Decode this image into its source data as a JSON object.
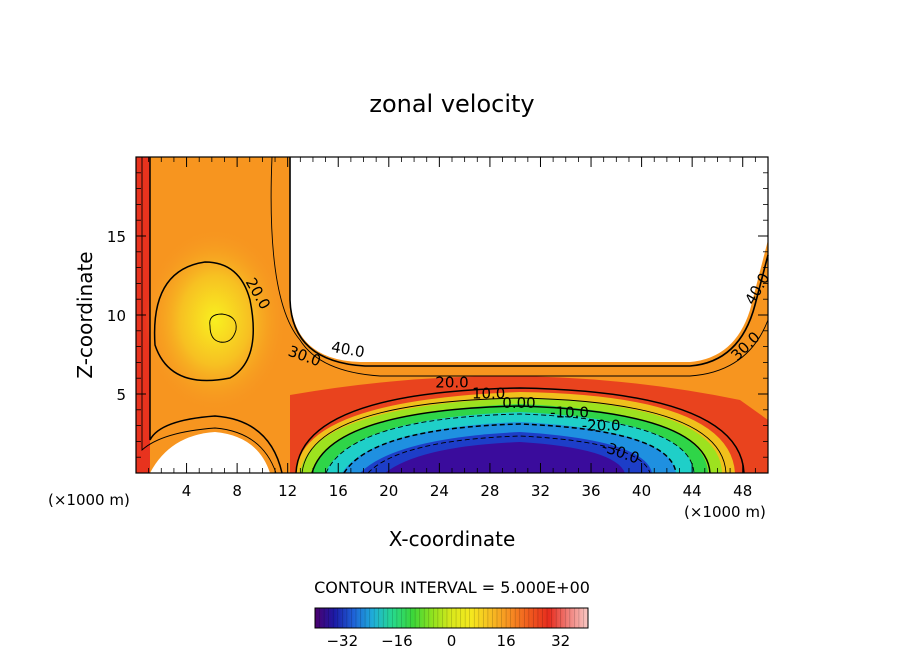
{
  "chart_data": {
    "type": "contour",
    "title": "zonal velocity",
    "xlabel": "X-coordinate",
    "ylabel": "Z-coordinate",
    "xunit": "(×1000 m)",
    "xlim": [
      0,
      50
    ],
    "ylim": [
      0,
      20
    ],
    "xticks": [
      4,
      8,
      12,
      16,
      20,
      24,
      28,
      32,
      36,
      40,
      44,
      48
    ],
    "xtick_labels": [
      "4",
      "8",
      "12",
      "16",
      "20",
      "24",
      "28",
      "32",
      "36",
      "40",
      "44",
      "48"
    ],
    "yticks": [
      5,
      10,
      15
    ],
    "ytick_labels": [
      "5",
      "10",
      "15"
    ],
    "contour_interval_text": "CONTOUR INTERVAL = 5.000E+00",
    "contour_interval": 5.0,
    "contour_labels": [
      "20.0",
      "40.0",
      "30.0",
      "20.0",
      "10.0",
      "0.00",
      "-10.0",
      "-20.0",
      "-30.0",
      "40.0",
      "30.0"
    ],
    "colorbar": {
      "min": -40,
      "max": 40,
      "ticks": [
        -32,
        -16,
        0,
        16,
        32
      ],
      "tick_labels": [
        "−32",
        "−16",
        "0",
        "16",
        "32"
      ],
      "colors": [
        "#4b006e",
        "#1c1aa6",
        "#1e64d8",
        "#1fb0d8",
        "#27d98a",
        "#3bd63a",
        "#8ee21f",
        "#d9e81c",
        "#f5e81e",
        "#f7be22",
        "#f78e22",
        "#f05a1e",
        "#e72c1e",
        "#f0807a",
        "#f8c8c4"
      ]
    },
    "regions": {
      "blank_regions": [
        "upper-right",
        "lower-left"
      ],
      "maximum_near": {
        "x": 7,
        "z": 9
      },
      "minimum_near": {
        "x": 30,
        "z": 1
      }
    }
  }
}
